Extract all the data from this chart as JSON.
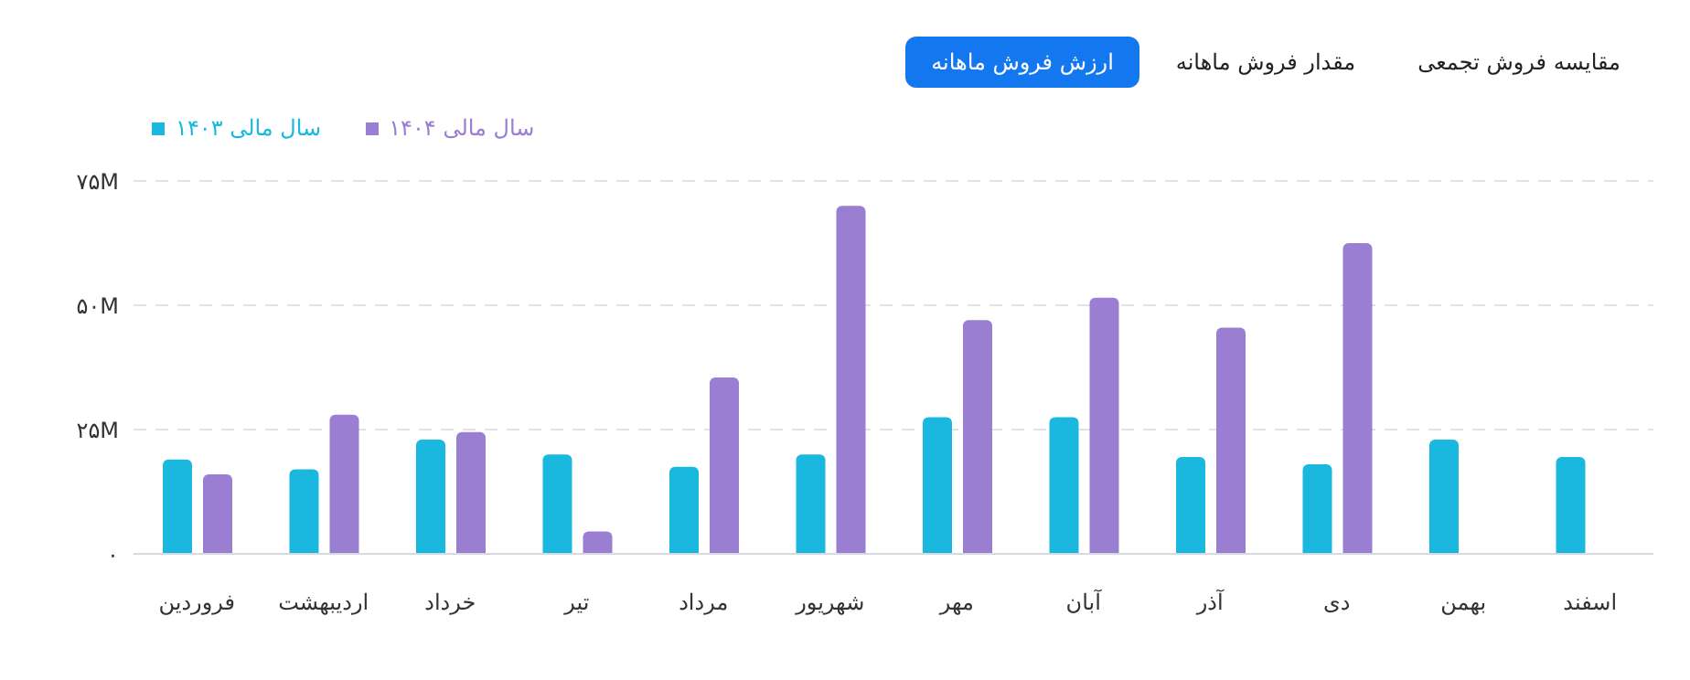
{
  "chart_data": {
    "type": "bar",
    "annotations": [
      "ارزش فروش ماهانه",
      "مقدار فروش ماهانه",
      "مقایسه فروش تجمعی"
    ],
    "categories": [
      "فروردین",
      "اردیبهشت",
      "خرداد",
      "تیر",
      "مرداد",
      "شهریور",
      "مهر",
      "آبان",
      "آذر",
      "دی",
      "بهمن",
      "اسفند"
    ],
    "series": [
      {
        "name": "سال مالی ۱۴۰۳",
        "color": "#1ab8de",
        "values": [
          19,
          17,
          23,
          20,
          17.5,
          20,
          27.5,
          27.5,
          19.5,
          18,
          23,
          19.5
        ]
      },
      {
        "name": "سال مالی ۱۴۰۴",
        "color": "#997ed1",
        "values": [
          16,
          28,
          24.5,
          4.5,
          35.5,
          70,
          47,
          51.5,
          45.5,
          62.5,
          null,
          null
        ]
      }
    ],
    "ylim": [
      0,
      75
    ],
    "yticks": [
      {
        "value": 0,
        "label": "۰"
      },
      {
        "value": 25,
        "label": "۲۵M"
      },
      {
        "value": 50,
        "label": "۵۰M"
      },
      {
        "value": 75,
        "label": "۷۵M"
      }
    ],
    "grid": "y",
    "legend": "top left"
  }
}
